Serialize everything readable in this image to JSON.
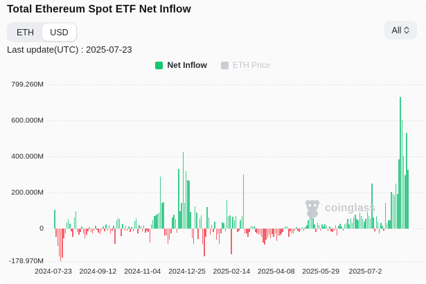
{
  "header": {
    "title": "Total Ethereum Spot ETF Net Inflow",
    "currency_toggle": {
      "options": [
        "ETH",
        "USD"
      ],
      "active": "USD"
    },
    "range_select": {
      "value": "All"
    },
    "last_update": "Last update(UTC) : 2025-07-23"
  },
  "legend": {
    "net_inflow": {
      "label": "Net Inflow",
      "color": "#17c671",
      "active": true
    },
    "eth_price": {
      "label": "ETH Price",
      "color": "#c9cdd3",
      "active": false
    }
  },
  "watermark": {
    "label": "coinglass"
  },
  "chart_data": {
    "type": "bar",
    "title": "Total Ethereum Spot ETF Net Inflow",
    "unit": "USD millions",
    "series_name": "Net Inflow",
    "legend_entries": [
      "Net Inflow",
      "ETH Price"
    ],
    "grid": "dashed horizontal",
    "ylim": [
      -178.97,
      799.26
    ],
    "y_ticks": [
      "799.260M",
      "600.000M",
      "400.000M",
      "200.000M",
      "0",
      "-178.970M"
    ],
    "y_tick_values": [
      799.26,
      600,
      400,
      200,
      0,
      -178.97
    ],
    "x_ticks": [
      "2024-07-23",
      "2024-09-12",
      "2024-11-04",
      "2024-12-25",
      "2025-02-14",
      "2025-04-08",
      "2025-05-29",
      "2025-07-2"
    ],
    "positive_color": "#3ecb8d",
    "negative_color": "#f5616b",
    "values": [
      104,
      -48,
      -98,
      -152,
      -179,
      -160,
      -55,
      -25,
      36,
      49,
      26,
      -15,
      -45,
      60,
      96,
      -20,
      -35,
      -18,
      12,
      -28,
      -55,
      -33,
      -14,
      8,
      -18,
      -26,
      -12,
      15,
      -8,
      -22,
      -30,
      -12,
      10,
      -15,
      22,
      -12,
      18,
      -25,
      -10,
      14,
      -84,
      48,
      58,
      52,
      -43,
      26,
      -12,
      15,
      -10,
      12,
      -18,
      8,
      -14,
      42,
      56,
      -28,
      20,
      12,
      -15,
      18,
      -22,
      -12,
      -20,
      -77,
      25,
      48,
      70,
      73,
      80,
      88,
      288,
      142,
      146,
      -38,
      -40,
      -84,
      -60,
      -28,
      62,
      77,
      55,
      -22,
      331,
      95,
      142,
      427,
      142,
      319,
      269,
      265,
      92,
      -55,
      -84,
      123,
      90,
      -58,
      55,
      75,
      -90,
      -154,
      -45,
      120,
      60,
      -35,
      25,
      -18,
      40,
      -60,
      -30,
      -85,
      -28,
      35,
      30,
      -15,
      158,
      70,
      73,
      -142,
      65,
      45,
      70,
      -20,
      -12,
      45,
      70,
      300,
      -25,
      -25,
      -45,
      -20,
      15,
      12,
      10,
      -18,
      -25,
      -35,
      -30,
      -45,
      -75,
      -90,
      -60,
      -50,
      -35,
      -55,
      -30,
      -45,
      -25,
      -70,
      -40,
      -40,
      -30,
      -20,
      8,
      10,
      12,
      -45,
      -15,
      -28,
      -25,
      -10,
      8,
      -12,
      -18,
      -8,
      6,
      -10,
      8,
      20,
      45,
      88,
      100,
      58,
      25,
      -18,
      30,
      18,
      -12,
      22,
      10,
      25,
      15,
      -10,
      12,
      -15,
      -18,
      -12,
      20,
      -38,
      15,
      28,
      12,
      -10,
      25,
      32,
      55,
      25,
      58,
      30,
      62,
      77,
      55,
      45,
      90,
      70,
      55,
      38,
      52,
      92,
      68,
      55,
      250,
      60,
      -15,
      70,
      38,
      -27,
      32,
      15,
      -13,
      142,
      30,
      45,
      45,
      204,
      192,
      185,
      250,
      192,
      385,
      731,
      604,
      404,
      296,
      531,
      327
    ]
  }
}
